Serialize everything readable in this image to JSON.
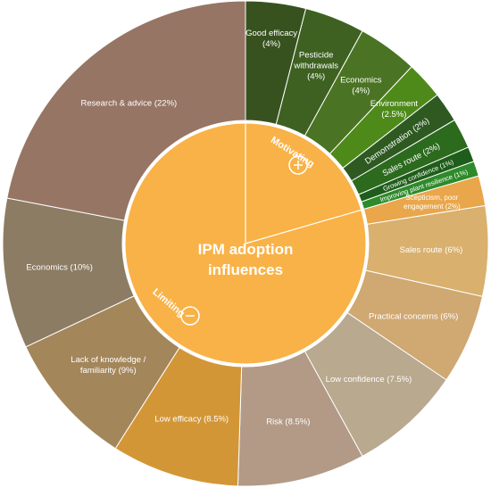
{
  "chart_data": {
    "type": "pie",
    "subtype": "sunburst",
    "center": {
      "line1": "IPM adoption",
      "line2": "influences",
      "color": "#F9B247"
    },
    "groups": [
      {
        "name": "Motivating",
        "icon": "plus-icon",
        "color": "#F9B247"
      },
      {
        "name": "Limiting",
        "icon": "minus-icon",
        "color": "#F9B247"
      }
    ],
    "slices": [
      {
        "group": "Motivating",
        "label": "Good efficacy (4%)",
        "lines": [
          "Good efficacy",
          "(4%)"
        ],
        "value": 4,
        "color": "#38521F"
      },
      {
        "group": "Motivating",
        "label": "Pesticide withdrawals (4%)",
        "lines": [
          "Pesticide",
          "withdrawals",
          "(4%)"
        ],
        "value": 4,
        "color": "#3E6121"
      },
      {
        "group": "Motivating",
        "label": "Economics (4%)",
        "lines": [
          "Economics",
          "(4%)"
        ],
        "value": 4,
        "color": "#4A7424"
      },
      {
        "group": "Motivating",
        "label": "Environment (2.5%)",
        "lines": [
          "Environment",
          "(2.5%)"
        ],
        "value": 2.5,
        "color": "#4E8A1A"
      },
      {
        "group": "Motivating",
        "label": "Demonstration (2%)",
        "lines": [
          "Demonstration (2%)"
        ],
        "value": 2,
        "color": "#2E5A22"
      },
      {
        "group": "Motivating",
        "label": "Sales route (2%)",
        "lines": [
          "Sales route (2%)"
        ],
        "value": 2,
        "color": "#2C6A1E"
      },
      {
        "group": "Motivating",
        "label": "Growing confidence (1%)",
        "lines": [
          "Growing confidence (1%)"
        ],
        "value": 1,
        "color": "#1F5E1A"
      },
      {
        "group": "Motivating",
        "label": "Improving plant resilience (1%)",
        "lines": [
          "Improving plant resilience (1%)"
        ],
        "value": 1,
        "color": "#2E8A2A"
      },
      {
        "group": "Limiting",
        "label": "Scepticism, poor engagement (2%)",
        "lines": [
          "Scepticism, poor",
          "engagement (2%)"
        ],
        "value": 2,
        "color": "#E9A64A"
      },
      {
        "group": "Limiting",
        "label": "Sales route (6%)",
        "lines": [
          "Sales route (6%)"
        ],
        "value": 6,
        "color": "#D9B06E"
      },
      {
        "group": "Limiting",
        "label": "Practical concerns (6%)",
        "lines": [
          "Practical concerns (6%)"
        ],
        "value": 6,
        "color": "#CFA872"
      },
      {
        "group": "Limiting",
        "label": "Low confidence (7.5%)",
        "lines": [
          "Low confidence (7.5%)"
        ],
        "value": 7.5,
        "color": "#B8A98F"
      },
      {
        "group": "Limiting",
        "label": "Risk (8.5%)",
        "lines": [
          "Risk (8.5%)"
        ],
        "value": 8.5,
        "color": "#B29A86"
      },
      {
        "group": "Limiting",
        "label": "Low efficacy (8.5%)",
        "lines": [
          "Low efficacy (8.5%)"
        ],
        "value": 8.5,
        "color": "#D39637"
      },
      {
        "group": "Limiting",
        "label": "Lack of knowledge / familiarity (9%)",
        "lines": [
          "Lack of knowledge /",
          "familiarity (9%)"
        ],
        "value": 9,
        "color": "#A4865B"
      },
      {
        "group": "Limiting",
        "label": "Economics (10%)",
        "lines": [
          "Economics (10%)"
        ],
        "value": 10,
        "color": "#8C7C63"
      },
      {
        "group": "Limiting",
        "label": "Research & advice (22%)",
        "lines": [
          "Research & advice (22%)"
        ],
        "value": 22,
        "color": "#967564"
      }
    ]
  }
}
